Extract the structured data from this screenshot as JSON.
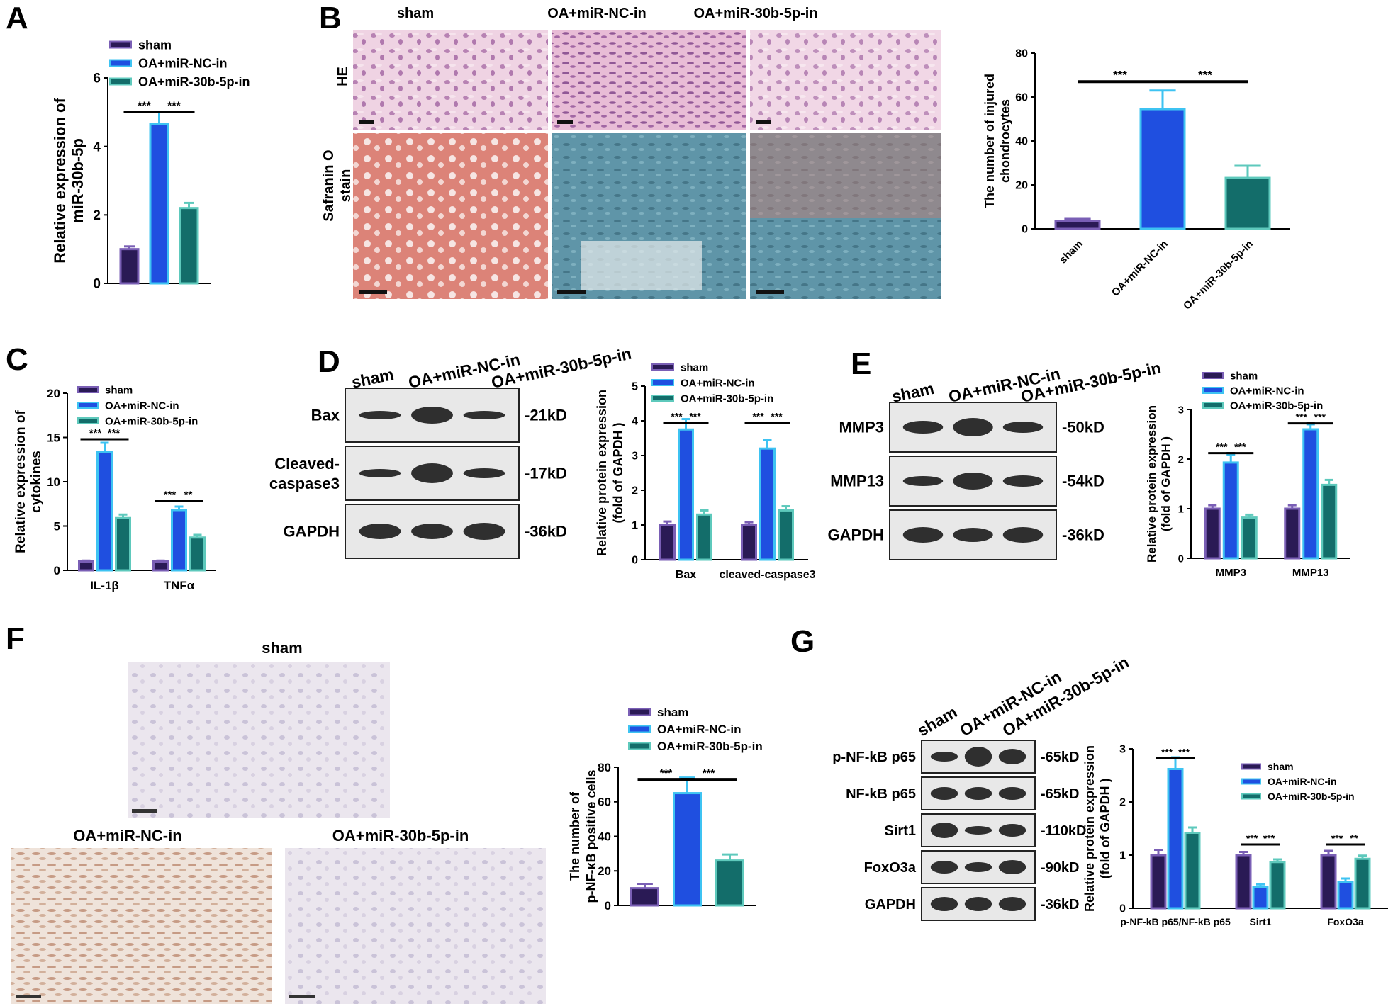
{
  "colors": {
    "sham": "#2a1a55",
    "sham_border": "#7a5fb5",
    "nc": "#1f4fe0",
    "nc_border": "#3ec3f2",
    "in30": "#136d6a",
    "in30_border": "#5ec9bc",
    "he_bg": "#ecc9dd",
    "he_nuclei": "#8a4f8e",
    "saf_red": "#d86a5c",
    "saf_blue": "#5c8fa2",
    "ihc_bg": "#ece7ef",
    "ihc_brown": "#c7a088",
    "blot_bg": "#e8e8e8",
    "band": "#1b1b1b"
  },
  "groups": [
    "sham",
    "OA+miR-NC-in",
    "OA+miR-30b-5p-in"
  ],
  "significance": {
    "three": "***",
    "two": "**"
  },
  "panels": {
    "A": {
      "letter": "A"
    },
    "B": {
      "letter": "B",
      "col_titles": [
        "sham",
        "OA+miR-NC-in",
        "OA+miR-30b-5p-in"
      ],
      "row_he": "HE",
      "row_saf_1": "Safranin O",
      "row_saf_2": "stain"
    },
    "C": {
      "letter": "C"
    },
    "D": {
      "letter": "D",
      "lane_labels": [
        "sham",
        "OA+miR-NC-in",
        "OA+miR-30b-5p-in"
      ],
      "bands": [
        {
          "name": "Bax",
          "size": "-21kD"
        },
        {
          "name_1": "Cleaved-",
          "name_2": "caspase3",
          "size": "-17kD"
        },
        {
          "name": "GAPDH",
          "size": "-36kD"
        }
      ]
    },
    "E": {
      "letter": "E",
      "lane_labels": [
        "sham",
        "OA+miR-NC-in",
        "OA+miR-30b-5p-in"
      ],
      "bands": [
        {
          "name": "MMP3",
          "size": "-50kD"
        },
        {
          "name": "MMP13",
          "size": "-54kD"
        },
        {
          "name": "GAPDH",
          "size": "-36kD"
        }
      ]
    },
    "F": {
      "letter": "F",
      "img_titles": [
        "sham",
        "OA+miR-NC-in",
        "OA+miR-30b-5p-in"
      ]
    },
    "G": {
      "letter": "G",
      "lane_labels": [
        "sham",
        "OA+miR-NC-in",
        "OA+miR-30b-5p-in"
      ],
      "bands": [
        {
          "name": "p-NF-kB p65",
          "size": "-65kD"
        },
        {
          "name": "NF-kB p65",
          "size": "-65kD"
        },
        {
          "name": "Sirt1",
          "size": "-110kD"
        },
        {
          "name": "FoxO3a",
          "size": "-90kD"
        },
        {
          "name": "GAPDH",
          "size": "-36kD"
        }
      ]
    }
  },
  "chart_data": [
    {
      "id": "A",
      "type": "bar",
      "ylabel_1": "Relative expression of",
      "ylabel_2": "miR-30b-5p",
      "ylim": [
        0,
        6
      ],
      "yticks": [
        "0",
        "2",
        "4",
        "6"
      ],
      "ytick_values": [
        0,
        2,
        4,
        6
      ],
      "categories": [
        ""
      ],
      "series": [
        {
          "name": "sham",
          "values": [
            1.0
          ],
          "errors": [
            0.08
          ]
        },
        {
          "name": "OA+miR-NC-in",
          "values": [
            4.65
          ],
          "errors": [
            0.35
          ]
        },
        {
          "name": "OA+miR-30b-5p-in",
          "values": [
            2.2
          ],
          "errors": [
            0.15
          ]
        }
      ],
      "legend": "top"
    },
    {
      "id": "B",
      "type": "bar",
      "ylabel_1": "The number of injured",
      "ylabel_2": "chondrocytes",
      "ylim": [
        0,
        80
      ],
      "yticks": [
        "0",
        "20",
        "40",
        "60",
        "80"
      ],
      "ytick_values": [
        0,
        20,
        40,
        60,
        80
      ],
      "categories": [
        "sham",
        "OA+miR-NC-in",
        "OA+miR-30b-5p-in"
      ],
      "values": [
        3.5,
        54.5,
        23.2
      ],
      "errors": [
        1.0,
        8.5,
        5.5
      ]
    },
    {
      "id": "C",
      "type": "bar",
      "ylabel_1": "Relative expression of",
      "ylabel_2": "cytokines",
      "ylim": [
        0,
        20
      ],
      "yticks": [
        "0",
        "5",
        "10",
        "15",
        "20"
      ],
      "ytick_values": [
        0,
        5,
        10,
        15,
        20
      ],
      "categories": [
        "IL-1β",
        "TNFα"
      ],
      "series": [
        {
          "name": "sham",
          "values": [
            1.0,
            1.0
          ],
          "errors": [
            0.1,
            0.1
          ]
        },
        {
          "name": "OA+miR-NC-in",
          "values": [
            13.4,
            6.8
          ],
          "errors": [
            1.0,
            0.4
          ]
        },
        {
          "name": "OA+miR-30b-5p-in",
          "values": [
            5.9,
            3.7
          ],
          "errors": [
            0.4,
            0.3
          ]
        }
      ],
      "legend": "top"
    },
    {
      "id": "D",
      "type": "bar",
      "ylabel_1": "Relative protein expression",
      "ylabel_2": "(fold of GAPDH  )",
      "ylim": [
        0,
        5
      ],
      "yticks": [
        "0",
        "1",
        "2",
        "3",
        "4",
        "5"
      ],
      "ytick_values": [
        0,
        1,
        2,
        3,
        4,
        5
      ],
      "categories": [
        "Bax",
        "cleaved-caspase3"
      ],
      "series": [
        {
          "name": "sham",
          "values": [
            1.0,
            1.0
          ],
          "errors": [
            0.1,
            0.08
          ]
        },
        {
          "name": "OA+miR-NC-in",
          "values": [
            3.75,
            3.2
          ],
          "errors": [
            0.3,
            0.25
          ]
        },
        {
          "name": "OA+miR-30b-5p-in",
          "values": [
            1.3,
            1.42
          ],
          "errors": [
            0.12,
            0.12
          ]
        }
      ],
      "legend": "top"
    },
    {
      "id": "E",
      "type": "bar",
      "ylabel_1": "Relative protein expression",
      "ylabel_2": "(fold of GAPDH  )",
      "ylim": [
        0,
        3
      ],
      "yticks": [
        "0",
        "1",
        "2",
        "3"
      ],
      "ytick_values": [
        0,
        1,
        2,
        3
      ],
      "categories": [
        "MMP3",
        "MMP13"
      ],
      "series": [
        {
          "name": "sham",
          "values": [
            1.0,
            1.0
          ],
          "errors": [
            0.07,
            0.07
          ]
        },
        {
          "name": "OA+miR-NC-in",
          "values": [
            1.93,
            2.6
          ],
          "errors": [
            0.15,
            0.1
          ]
        },
        {
          "name": "OA+miR-30b-5p-in",
          "values": [
            0.82,
            1.48
          ],
          "errors": [
            0.06,
            0.1
          ]
        }
      ],
      "legend": "top"
    },
    {
      "id": "F",
      "type": "bar",
      "ylabel_1": "The number of",
      "ylabel_2": "p-NF-κB positive cells",
      "ylim": [
        0,
        80
      ],
      "yticks": [
        "0",
        "20",
        "40",
        "60",
        "80"
      ],
      "ytick_values": [
        0,
        20,
        40,
        60,
        80
      ],
      "categories": [
        ""
      ],
      "series": [
        {
          "name": "sham",
          "values": [
            10.0
          ],
          "errors": [
            2.5
          ]
        },
        {
          "name": "OA+miR-NC-in",
          "values": [
            65.0
          ],
          "errors": [
            9.0
          ]
        },
        {
          "name": "OA+miR-30b-5p-in",
          "values": [
            26.0
          ],
          "errors": [
            3.5
          ]
        }
      ],
      "legend": "top"
    },
    {
      "id": "G",
      "type": "bar",
      "ylabel_1": "Relative protein expression",
      "ylabel_2": "(fold of GAPDH  )",
      "ylim": [
        0,
        3
      ],
      "yticks": [
        "0",
        "1",
        "2",
        "3"
      ],
      "ytick_values": [
        0,
        1,
        2,
        3
      ],
      "categories": [
        "p-NF-kB p65/NF-kB p65",
        "Sirt1",
        "FoxO3a"
      ],
      "series": [
        {
          "name": "sham",
          "values": [
            1.0,
            1.0,
            1.0
          ],
          "errors": [
            0.1,
            0.06,
            0.08
          ]
        },
        {
          "name": "OA+miR-NC-in",
          "values": [
            2.62,
            0.4,
            0.5
          ],
          "errors": [
            0.22,
            0.05,
            0.06
          ]
        },
        {
          "name": "OA+miR-30b-5p-in",
          "values": [
            1.42,
            0.87,
            0.93
          ],
          "errors": [
            0.1,
            0.05,
            0.06
          ]
        }
      ],
      "legend": "right"
    }
  ]
}
